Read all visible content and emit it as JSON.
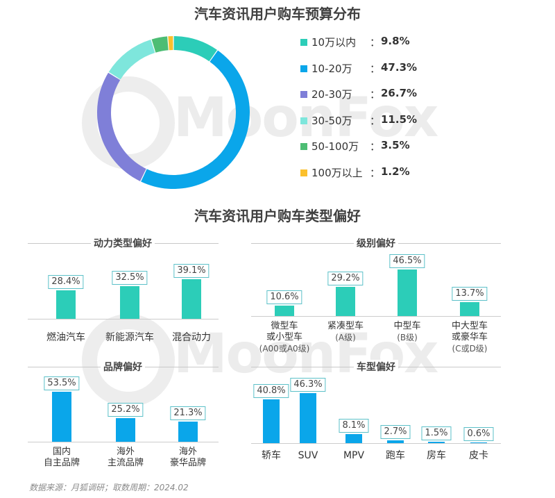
{
  "watermark": "MoonFox",
  "source": "数据来源：月狐调研；取数周期：2024.02",
  "chart_data": [
    {
      "type": "pie",
      "title": "汽车资讯用户购车预算分布",
      "categories": [
        "10万以内",
        "10-20万",
        "20-30万",
        "30-50万",
        "50-100万",
        "100万以上"
      ],
      "values": [
        9.8,
        47.3,
        26.7,
        11.5,
        3.5,
        1.2
      ],
      "value_labels": [
        "9.8%",
        "47.3%",
        "26.7%",
        "11.5%",
        "3.5%",
        "1.2%"
      ],
      "colors": [
        "#2ccdb8",
        "#0aa6ea",
        "#7f7fd8",
        "#7ee6dc",
        "#4dbd74",
        "#fbc02d"
      ],
      "legend_position": "right"
    },
    {
      "type": "bar",
      "title": "动力类型偏好",
      "categories": [
        "燃油汽车",
        "新能源汽车",
        "混合动力"
      ],
      "values": [
        28.4,
        32.5,
        39.1
      ],
      "value_labels": [
        "28.4%",
        "32.5%",
        "39.1%"
      ],
      "color": "#2ccdb8"
    },
    {
      "type": "bar",
      "title": "级别偏好",
      "categories": [
        [
          "微型车",
          "或小型车",
          "(A00或A0级)"
        ],
        [
          "紧凑型车",
          "(A级)"
        ],
        [
          "中型车",
          "(B级)"
        ],
        [
          "中大型车",
          "或豪华车",
          "(C或D级)"
        ]
      ],
      "values": [
        10.6,
        29.2,
        46.5,
        13.7
      ],
      "value_labels": [
        "10.6%",
        "29.2%",
        "46.5%",
        "13.7%"
      ],
      "color": "#2ccdb8"
    },
    {
      "type": "bar",
      "title": "品牌偏好",
      "categories": [
        [
          "国内",
          "自主品牌"
        ],
        [
          "海外",
          "主流品牌"
        ],
        [
          "海外",
          "豪华品牌"
        ]
      ],
      "values": [
        53.5,
        25.2,
        21.3
      ],
      "value_labels": [
        "53.5%",
        "25.2%",
        "21.3%"
      ],
      "color": "#0aa6ea"
    },
    {
      "type": "bar",
      "title": "车型偏好",
      "categories": [
        "轿车",
        "SUV",
        "MPV",
        "跑车",
        "房车",
        "皮卡"
      ],
      "values": [
        40.8,
        46.3,
        8.1,
        2.7,
        1.5,
        0.6
      ],
      "value_labels": [
        "40.8%",
        "46.3%",
        "8.1%",
        "2.7%",
        "1.5%",
        "0.6%"
      ],
      "color": "#0aa6ea"
    }
  ],
  "section_title": "汽车资讯用户购车类型偏好"
}
